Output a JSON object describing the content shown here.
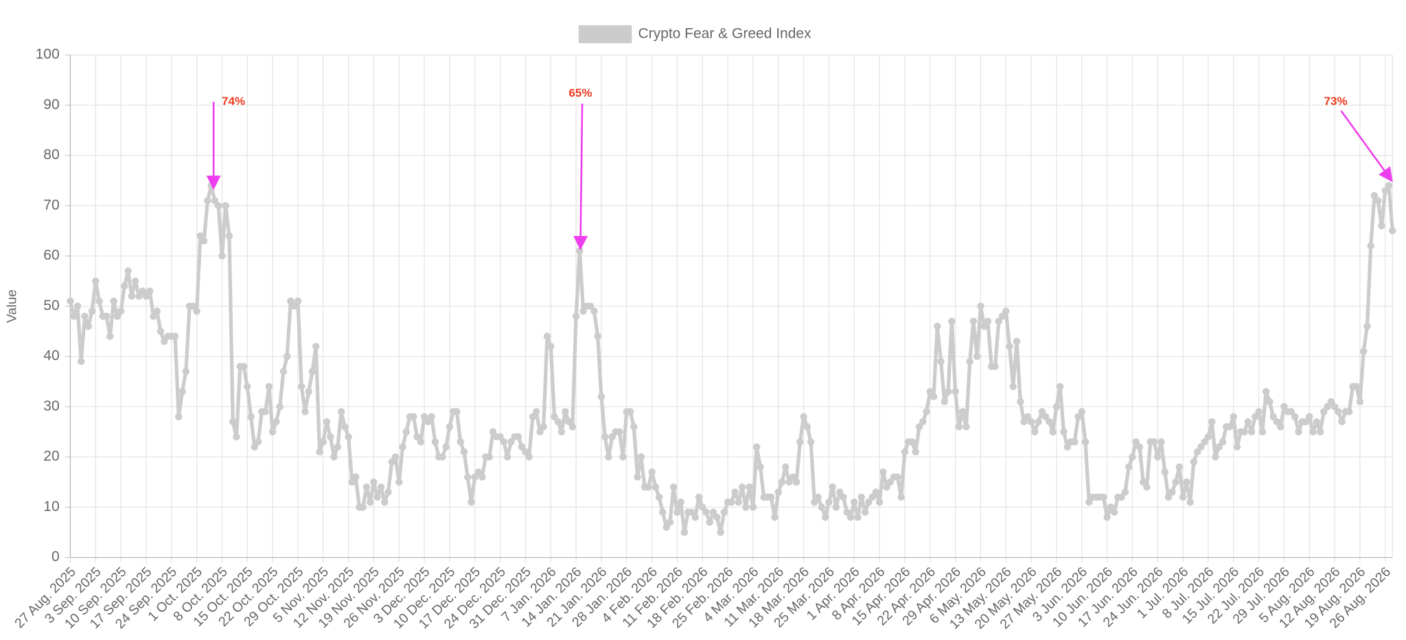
{
  "chart_data": {
    "type": "line",
    "legend": "Crypto Fear & Greed Index",
    "y_label": "Value",
    "annotations": [
      "74%",
      "65%",
      "73%"
    ],
    "annotation_color": "#ee3b1f",
    "arrow_color": "#ee3fee",
    "ylim": [
      0,
      100
    ],
    "yticks": [
      0,
      10,
      20,
      30,
      40,
      50,
      60,
      70,
      80,
      90,
      100
    ],
    "grid": true,
    "categories": [
      "27 Aug. 2025",
      null,
      null,
      null,
      null,
      null,
      null,
      "3 Sep. 2025",
      null,
      null,
      null,
      null,
      null,
      null,
      "10 Sep. 2025",
      null,
      null,
      null,
      null,
      null,
      null,
      "17 Sep. 2025",
      null,
      null,
      null,
      null,
      null,
      null,
      "24 Sep. 2025",
      null,
      null,
      null,
      null,
      null,
      null,
      "1 Oct. 2025",
      null,
      null,
      null,
      null,
      null,
      null,
      "8 Oct. 2025",
      null,
      null,
      null,
      null,
      null,
      null,
      "15 Oct. 2025",
      null,
      null,
      null,
      null,
      null,
      null,
      "22 Oct. 2025",
      null,
      null,
      null,
      null,
      null,
      null,
      "29 Oct. 2025",
      null,
      null,
      null,
      null,
      null,
      null,
      "5 Nov. 2025",
      null,
      null,
      null,
      null,
      null,
      null,
      "12 Nov. 2025",
      null,
      null,
      null,
      null,
      null,
      null,
      "19 Nov. 2025",
      null,
      null,
      null,
      null,
      null,
      null,
      "26 Nov. 2025",
      null,
      null,
      null,
      null,
      null,
      null,
      "3 Dec. 2025",
      null,
      null,
      null,
      null,
      null,
      null,
      "10 Dec. 2025",
      null,
      null,
      null,
      null,
      null,
      null,
      "17 Dec. 2025",
      null,
      null,
      null,
      null,
      null,
      null,
      "24 Dec. 2025",
      null,
      null,
      null,
      null,
      null,
      null,
      "31 Dec. 2025",
      null,
      null,
      null,
      null,
      null,
      null,
      "7 Jan. 2026",
      null,
      null,
      null,
      null,
      null,
      null,
      "14 Jan. 2026",
      null,
      null,
      null,
      null,
      null,
      null,
      "21 Jan. 2026",
      null,
      null,
      null,
      null,
      null,
      null,
      "28 Jan. 2026",
      null,
      null,
      null,
      null,
      null,
      null,
      "4 Feb. 2026",
      null,
      null,
      null,
      null,
      null,
      null,
      "11 Feb. 2026",
      null,
      null,
      null,
      null,
      null,
      null,
      "18 Feb. 2026",
      null,
      null,
      null,
      null,
      null,
      null,
      "25 Feb. 2026",
      null,
      null,
      null,
      null,
      null,
      null,
      "4 Mar. 2026",
      null,
      null,
      null,
      null,
      null,
      null,
      "11 Mar. 2026",
      null,
      null,
      null,
      null,
      null,
      null,
      "18 Mar. 2026",
      null,
      null,
      null,
      null,
      null,
      null,
      "25 Mar. 2026",
      null,
      null,
      null,
      null,
      null,
      null,
      "1 Apr. 2026",
      null,
      null,
      null,
      null,
      null,
      null,
      "8 Apr. 2026",
      null,
      null,
      null,
      null,
      null,
      null,
      "15 Apr. 2026",
      null,
      null,
      null,
      null,
      null,
      null,
      "22 Apr. 2026",
      null,
      null,
      null,
      null,
      null,
      null,
      "29 Apr. 2026",
      null,
      null,
      null,
      null,
      null,
      null,
      "6 May. 2026",
      null,
      null,
      null,
      null,
      null,
      null,
      "13 May. 2026",
      null,
      null,
      null,
      null,
      null,
      null,
      "20 May. 2026",
      null,
      null,
      null,
      null,
      null,
      null,
      "27 May. 2026",
      null,
      null,
      null,
      null,
      null,
      null,
      "3 Jun. 2026",
      null,
      null,
      null,
      null,
      null,
      null,
      "10 Jun. 2026",
      null,
      null,
      null,
      null,
      null,
      null,
      "17 Jun. 2026",
      null,
      null,
      null,
      null,
      null,
      null,
      "24 Jun. 2026",
      null,
      null,
      null,
      null,
      null,
      null,
      "1 Jul. 2026",
      null,
      null,
      null,
      null,
      null,
      null,
      "8 Jul. 2026",
      null,
      null,
      null,
      null,
      null,
      null,
      "15 Jul. 2026",
      null,
      null,
      null,
      null,
      null,
      null,
      "22 Jul. 2026",
      null,
      null,
      null,
      null,
      null,
      null,
      "29 Jul. 2026",
      null,
      null,
      null,
      null,
      null,
      null,
      "5 Aug. 2026",
      null,
      null,
      null,
      null,
      null,
      null,
      "12 Aug. 2026",
      null,
      null,
      null,
      null,
      null,
      null,
      "19 Aug. 2026",
      null,
      null,
      null,
      null,
      null,
      null,
      "26 Aug. 2026",
      null,
      null
    ],
    "series": [
      {
        "name": "Crypto Fear & Greed Index",
        "color": "#cccccc",
        "values": [
          51,
          48,
          50,
          39,
          48,
          46,
          49,
          55,
          51,
          48,
          48,
          44,
          51,
          48,
          49,
          54,
          57,
          52,
          55,
          52,
          53,
          52,
          53,
          48,
          49,
          45,
          43,
          44,
          44,
          44,
          28,
          33,
          37,
          50,
          50,
          49,
          64,
          63,
          71,
          74,
          71,
          70,
          60,
          70,
          64,
          27,
          24,
          38,
          38,
          34,
          28,
          22,
          23,
          29,
          29,
          34,
          25,
          27,
          30,
          37,
          40,
          51,
          50,
          51,
          34,
          29,
          33,
          37,
          42,
          21,
          23,
          27,
          24,
          20,
          22,
          29,
          26,
          24,
          15,
          16,
          10,
          10,
          14,
          11,
          15,
          12,
          14,
          11,
          13,
          19,
          20,
          15,
          22,
          25,
          28,
          28,
          24,
          23,
          28,
          27,
          28,
          23,
          20,
          20,
          22,
          26,
          29,
          29,
          23,
          21,
          16,
          11,
          16,
          17,
          16,
          20,
          20,
          25,
          24,
          24,
          23,
          20,
          23,
          24,
          24,
          22,
          21,
          20,
          28,
          29,
          25,
          26,
          44,
          42,
          28,
          27,
          25,
          29,
          27,
          26,
          48,
          61,
          49,
          50,
          50,
          49,
          44,
          32,
          24,
          20,
          24,
          25,
          25,
          20,
          29,
          29,
          26,
          16,
          20,
          14,
          14,
          17,
          14,
          12,
          9,
          6,
          7,
          14,
          9,
          11,
          5,
          9,
          9,
          8,
          12,
          10,
          9,
          7,
          9,
          8,
          5,
          9,
          11,
          11,
          13,
          11,
          14,
          10,
          14,
          10,
          22,
          18,
          12,
          12,
          12,
          8,
          13,
          15,
          18,
          15,
          16,
          15,
          23,
          28,
          26,
          23,
          11,
          12,
          10,
          8,
          11,
          14,
          10,
          13,
          12,
          9,
          8,
          11,
          8,
          12,
          9,
          11,
          12,
          13,
          11,
          17,
          14,
          15,
          16,
          16,
          12,
          21,
          23,
          23,
          21,
          26,
          27,
          29,
          33,
          32,
          46,
          39,
          31,
          33,
          47,
          33,
          26,
          29,
          26,
          39,
          47,
          40,
          50,
          46,
          47,
          38,
          38,
          47,
          48,
          49,
          42,
          34,
          43,
          31,
          27,
          28,
          27,
          25,
          27,
          29,
          28,
          27,
          25,
          30,
          34,
          25,
          22,
          23,
          23,
          28,
          29,
          23,
          11,
          12,
          12,
          12,
          12,
          8,
          10,
          9,
          12,
          12,
          13,
          18,
          20,
          23,
          22,
          15,
          14,
          23,
          23,
          20,
          23,
          17,
          12,
          13,
          15,
          18,
          12,
          15,
          11,
          19,
          21,
          22,
          23,
          24,
          27,
          20,
          22,
          23,
          26,
          26,
          28,
          22,
          25,
          25,
          27,
          25,
          28,
          29,
          25,
          33,
          31,
          28,
          27,
          26,
          30,
          29,
          29,
          28,
          25,
          27,
          27,
          28,
          25,
          27,
          25,
          29,
          30,
          31,
          30,
          29,
          27,
          29,
          29,
          34,
          34,
          31,
          41,
          46,
          62,
          72,
          71,
          66,
          73,
          74,
          65
        ]
      }
    ]
  }
}
